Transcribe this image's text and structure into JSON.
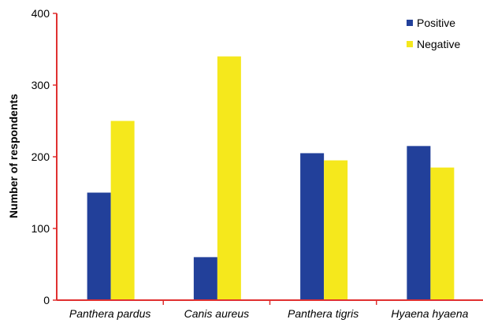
{
  "chart_data": {
    "type": "bar",
    "title": "",
    "xlabel": "",
    "ylabel": "Number of respondents",
    "ylim": [
      0,
      400
    ],
    "yticks": [
      0,
      100,
      200,
      300,
      400
    ],
    "categories": [
      "Panthera pardus",
      "Canis aureus",
      "Panthera tigris",
      "Hyaena hyaena"
    ],
    "series": [
      {
        "name": "Positive",
        "values": [
          150,
          60,
          205,
          215
        ],
        "color": "#22409a"
      },
      {
        "name": "Negative",
        "values": [
          250,
          340,
          195,
          185
        ],
        "color": "#f5e81c"
      }
    ],
    "axis_color": "#e03030",
    "grid": false,
    "legend_position": "top-right"
  }
}
